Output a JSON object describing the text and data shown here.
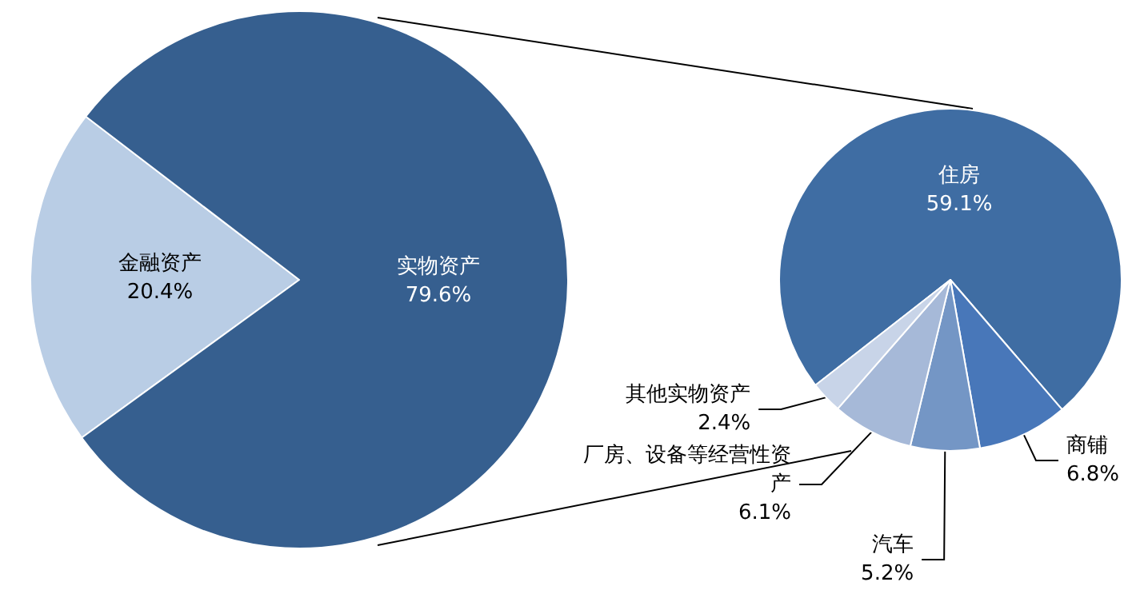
{
  "chart_data": [
    {
      "type": "pie",
      "categories": [
        "金融资产",
        "实物资产"
      ],
      "values": [
        20.4,
        79.6
      ],
      "colors": [
        "#b9cde5",
        "#365f8f"
      ],
      "value_labels": [
        "20.4%",
        "79.6%"
      ]
    },
    {
      "type": "pie",
      "categories": [
        "住房",
        "商铺",
        "汽车",
        "厂房、设备等经营性资产",
        "其他实物资产"
      ],
      "values": [
        59.1,
        6.8,
        5.2,
        6.1,
        2.4
      ],
      "colors": [
        "#3f6da3",
        "#4877b9",
        "#7496c5",
        "#a6b9d8",
        "#c8d4e8"
      ],
      "value_labels": [
        "59.1%",
        "6.8%",
        "5.2%",
        "6.1%",
        "2.4%"
      ]
    }
  ]
}
